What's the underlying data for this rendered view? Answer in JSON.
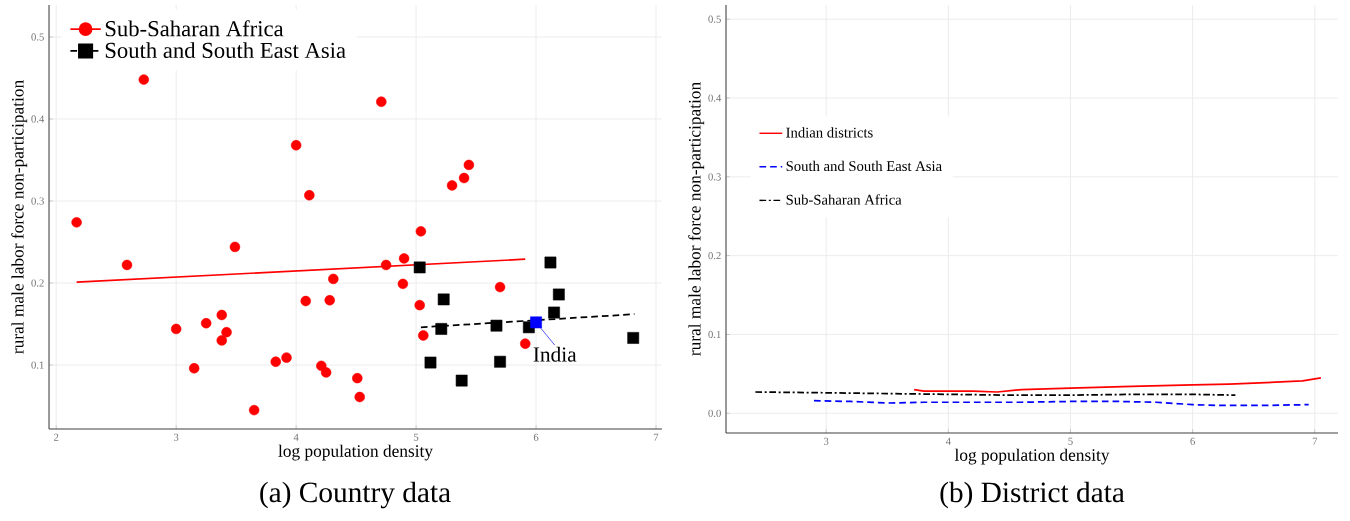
{
  "chart_data": [
    {
      "type": "scatter",
      "title": "(a) Country data",
      "xlabel": "log population density",
      "ylabel": "rural male labor force non-participation",
      "xlim": [
        1.94,
        7.05
      ],
      "ylim": [
        0.022,
        0.539
      ],
      "xticks": [
        2,
        3,
        4,
        5,
        6,
        7
      ],
      "yticks": [
        0.1,
        0.2,
        0.3,
        0.4,
        0.5
      ],
      "grid": true,
      "legend": "top left",
      "annotations": [
        {
          "text": "India",
          "x": 6.0,
          "y": 0.152
        }
      ],
      "series": [
        {
          "name": "Sub-Saharan Africa",
          "type": "scatter",
          "marker": "circle",
          "color": "#ff0000",
          "x": [
            2.17,
            2.59,
            2.73,
            3.0,
            3.15,
            3.25,
            3.38,
            3.38,
            3.42,
            3.49,
            3.65,
            3.83,
            3.92,
            4.0,
            4.08,
            4.11,
            4.21,
            4.25,
            4.28,
            4.31,
            4.51,
            4.53,
            4.71,
            4.75,
            4.89,
            4.9,
            5.03,
            5.04,
            5.06,
            5.3,
            5.4,
            5.44,
            5.7,
            5.91
          ],
          "values": [
            0.274,
            0.222,
            0.448,
            0.144,
            0.096,
            0.151,
            0.161,
            0.13,
            0.14,
            0.244,
            0.045,
            0.104,
            0.109,
            0.368,
            0.178,
            0.307,
            0.099,
            0.091,
            0.179,
            0.205,
            0.084,
            0.061,
            0.421,
            0.222,
            0.199,
            0.23,
            0.173,
            0.263,
            0.136,
            0.319,
            0.328,
            0.344,
            0.195,
            0.126
          ]
        },
        {
          "type": "line",
          "line_style": "solid",
          "color": "#ff0000",
          "x": [
            2.17,
            5.91
          ],
          "values": [
            0.201,
            0.229
          ]
        },
        {
          "name": "South and South East Asia",
          "type": "scatter",
          "marker": "square",
          "color": "#000000",
          "x": [
            5.03,
            5.12,
            5.21,
            5.23,
            5.38,
            5.67,
            5.7,
            5.94,
            6.12,
            6.15,
            6.19,
            6.81
          ],
          "values": [
            0.219,
            0.103,
            0.144,
            0.18,
            0.081,
            0.148,
            0.104,
            0.146,
            0.225,
            0.164,
            0.186,
            0.133
          ]
        },
        {
          "type": "line",
          "line_style": "dashed",
          "color": "#000000",
          "x": [
            5.04,
            6.82
          ],
          "values": [
            0.146,
            0.162
          ]
        },
        {
          "type": "scatter",
          "marker": "square",
          "color": "#0000ff",
          "x": [
            6.0
          ],
          "values": [
            0.152
          ]
        }
      ]
    },
    {
      "type": "line",
      "title": "(b) District data",
      "xlabel": "log population density",
      "ylabel": "rural male labor force non-participation",
      "xlim": [
        2.18,
        7.19
      ],
      "ylim": [
        -0.025,
        0.518
      ],
      "xticks": [
        3,
        4,
        5,
        6,
        7
      ],
      "yticks": [
        {
          "value": 0,
          "label": "0.0"
        },
        0.1,
        0.2,
        0.3,
        0.4,
        0.5
      ],
      "grid": true,
      "legend": "left",
      "series": [
        {
          "name": "Indian districts",
          "line_style": "solid",
          "color": "#ff0000",
          "x": [
            3.72,
            3.8,
            4.0,
            4.2,
            4.4,
            4.6,
            4.8,
            5.0,
            5.5,
            6.0,
            6.3,
            6.6,
            6.9,
            7.05
          ],
          "values": [
            0.03,
            0.028,
            0.028,
            0.028,
            0.027,
            0.03,
            0.031,
            0.032,
            0.034,
            0.036,
            0.037,
            0.039,
            0.041,
            0.045
          ]
        },
        {
          "name": "South and South East Asia",
          "line_style": "dashed",
          "color": "#0000ff",
          "x": [
            2.9,
            3.2,
            3.5,
            3.8,
            4.2,
            4.6,
            5.0,
            5.4,
            5.7,
            6.0,
            6.2,
            6.6,
            6.95
          ],
          "values": [
            0.016,
            0.015,
            0.013,
            0.014,
            0.014,
            0.014,
            0.015,
            0.015,
            0.014,
            0.011,
            0.01,
            0.01,
            0.011
          ]
        },
        {
          "name": "Sub-Saharan Africa",
          "line_style": "dashdot",
          "color": "#000000",
          "x": [
            2.42,
            3.0,
            3.5,
            4.0,
            4.5,
            5.0,
            5.5,
            6.0,
            6.35
          ],
          "values": [
            0.027,
            0.026,
            0.025,
            0.024,
            0.023,
            0.023,
            0.024,
            0.024,
            0.023
          ]
        }
      ]
    }
  ]
}
